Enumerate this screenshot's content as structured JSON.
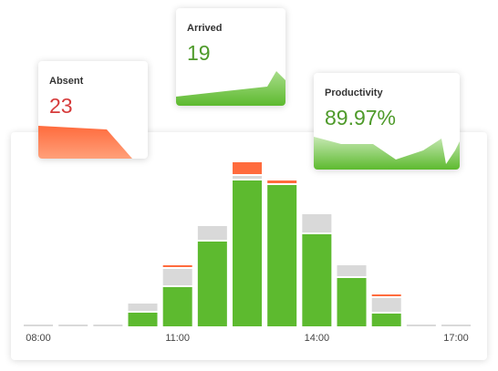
{
  "cards": [
    {
      "title": "Absent",
      "value": "23"
    },
    {
      "title": "Arrived",
      "value": "19"
    },
    {
      "title": "Productivity",
      "value": "89.97%"
    }
  ],
  "chart_data": {
    "type": "bar",
    "stacked": true,
    "categories": [
      "08:00",
      null,
      null,
      null,
      "11:00",
      null,
      null,
      null,
      "14:00",
      null,
      null,
      null,
      "17:00"
    ],
    "series": [
      {
        "color": "#5dba2f",
        "values": [
          0,
          0,
          0,
          15,
          43,
          93,
          160,
          155,
          101,
          53,
          14,
          0,
          0
        ]
      },
      {
        "color": "#d9d9d9",
        "values": [
          2,
          2,
          2,
          10,
          20,
          17,
          5,
          0,
          22,
          14,
          17,
          2,
          2
        ]
      },
      {
        "color": "#ff6b3d",
        "values": [
          0,
          0,
          0,
          0,
          4,
          0,
          15,
          5,
          0,
          0,
          4,
          0,
          0
        ]
      }
    ]
  }
}
